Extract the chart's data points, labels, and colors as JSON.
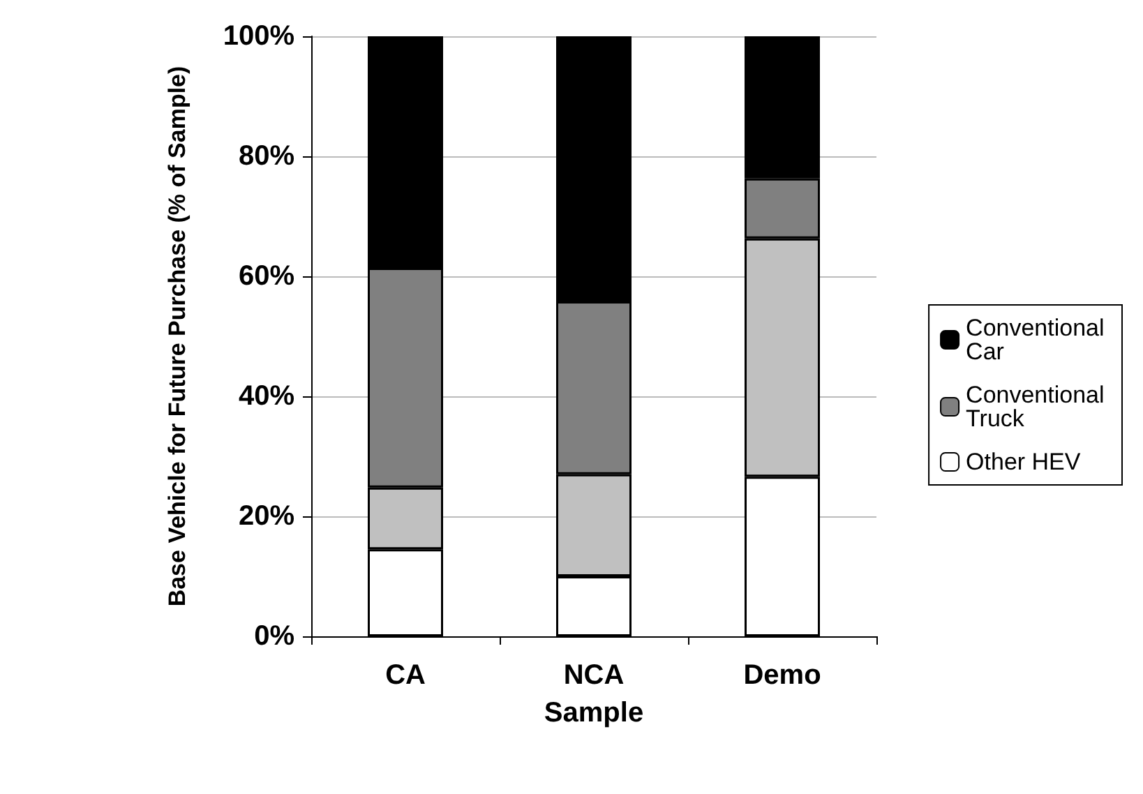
{
  "chart_data": {
    "type": "bar",
    "stacked": true,
    "categories": [
      "CA",
      "NCA",
      "Demo"
    ],
    "xlabel": "Sample",
    "ylabel": "Base Vehicle for Future Purchase (% of Sample)",
    "series": [
      {
        "name": "Other HEV",
        "color": "#ffffff",
        "values": [
          14.5,
          10,
          26.6
        ]
      },
      {
        "color": "#c0c0c0",
        "values": [
          10.3,
          17,
          39.7
        ]
      },
      {
        "name": "Conventional Truck",
        "color": "#808080",
        "values": [
          36.6,
          28.8,
          10
        ]
      },
      {
        "name": "Conventional Car",
        "color": "#000000",
        "values": [
          38.6,
          44.2,
          23.7
        ]
      }
    ],
    "ylim": [
      0,
      100
    ],
    "yticks": [
      {
        "value": 0,
        "label": "0%"
      },
      {
        "value": 20,
        "label": "20%"
      },
      {
        "value": 40,
        "label": "40%"
      },
      {
        "value": 60,
        "label": "60%"
      },
      {
        "value": 80,
        "label": "80%"
      },
      {
        "value": 100,
        "label": "100%"
      }
    ],
    "grid": "y",
    "legend": "right"
  }
}
